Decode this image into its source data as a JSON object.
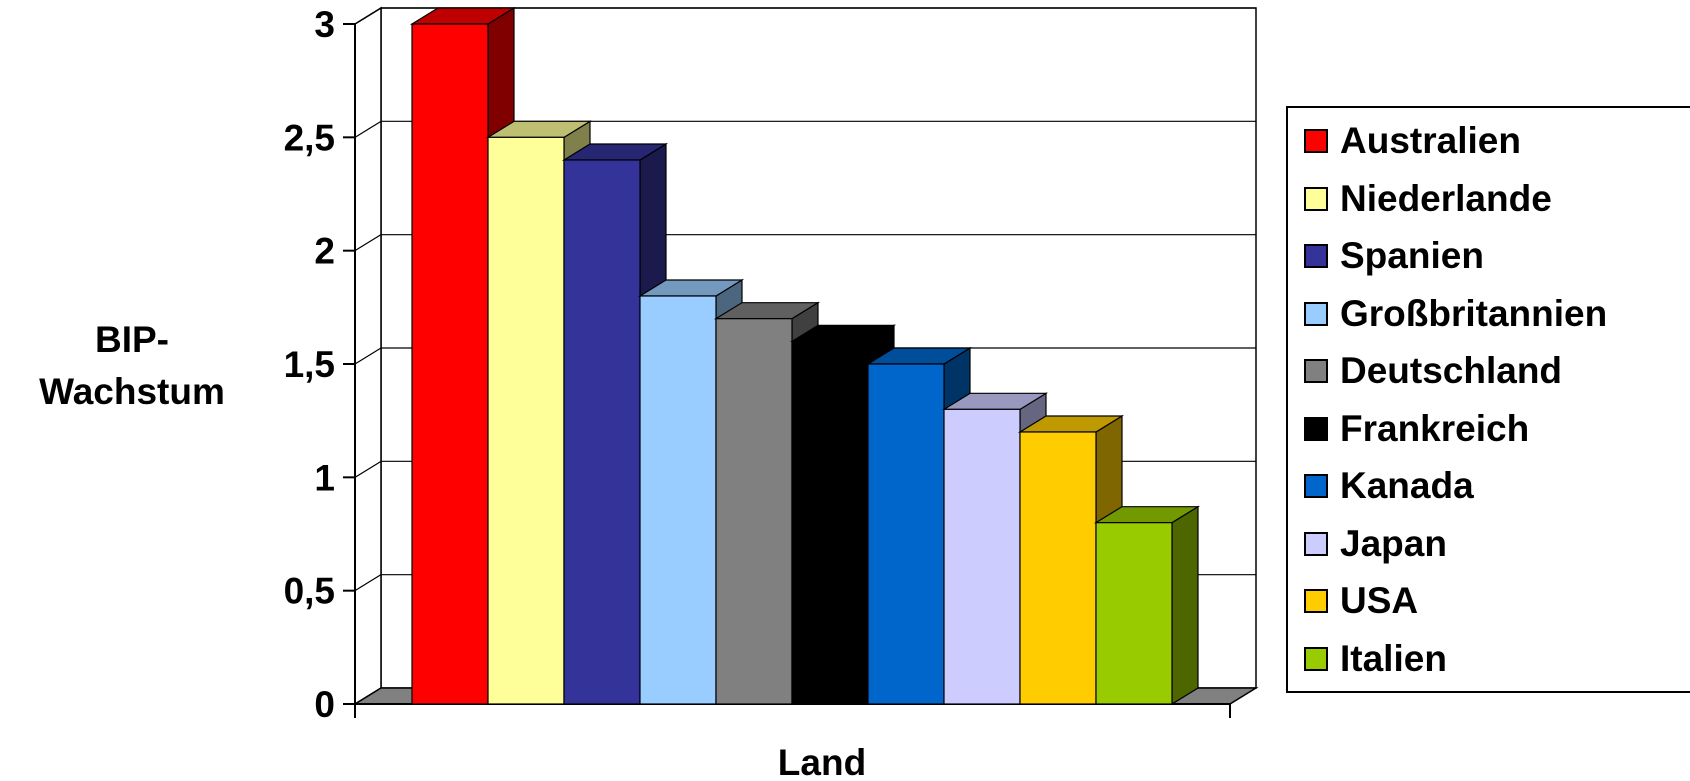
{
  "chart_data": {
    "type": "bar",
    "style": "3d-column",
    "xlabel": "Land",
    "ylabel_lines": [
      "BIP-",
      "Wachstum"
    ],
    "ylim": [
      0,
      3
    ],
    "yticks": [
      "0",
      "0,5",
      "1",
      "1,5",
      "2",
      "2,5",
      "3"
    ],
    "grid": true,
    "legend_position": "right",
    "categories": [
      "Australien",
      "Niederlande",
      "Spanien",
      "Großbritannien",
      "Deutschland",
      "Frankreich",
      "Kanada",
      "Japan",
      "USA",
      "Italien"
    ],
    "values": [
      3.0,
      2.5,
      2.4,
      1.8,
      1.7,
      1.6,
      1.5,
      1.3,
      1.2,
      0.8
    ],
    "colors": [
      "#ff0000",
      "#ffff99",
      "#333399",
      "#99ccff",
      "#808080",
      "#000000",
      "#0066cc",
      "#ccccff",
      "#ffcc00",
      "#99cc00"
    ]
  }
}
